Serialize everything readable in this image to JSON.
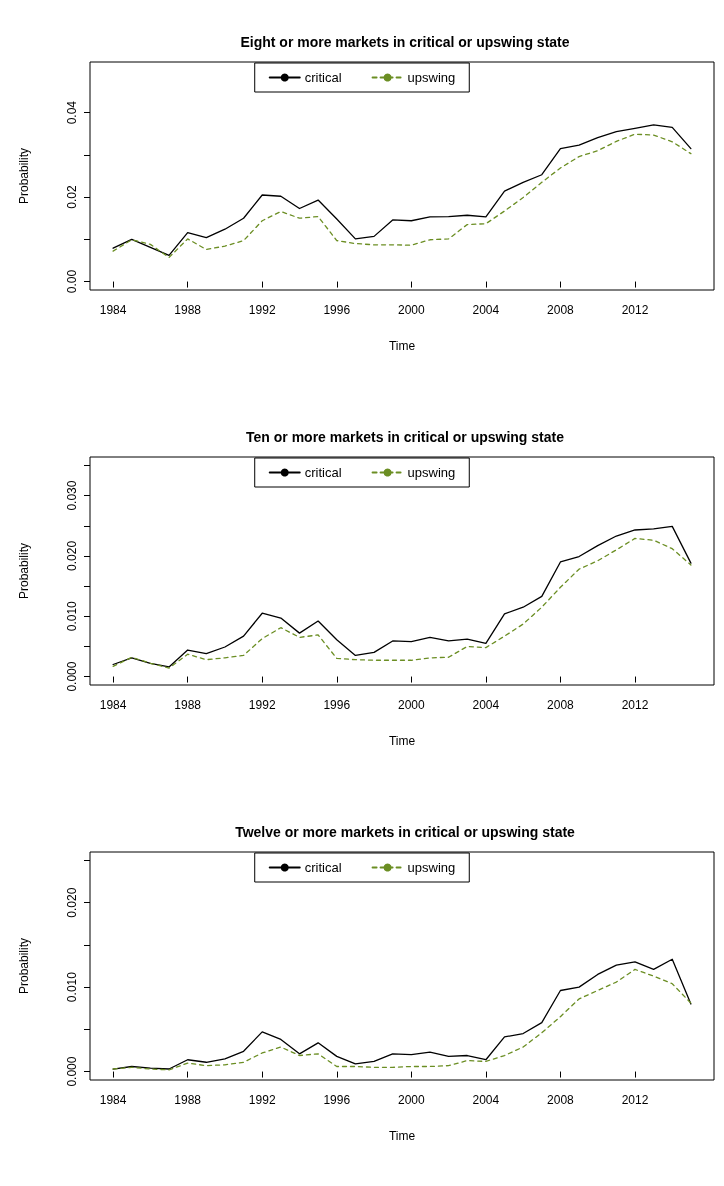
{
  "chart_data": [
    {
      "type": "line",
      "title": "Eight or more markets in critical or upswing state",
      "xlabel": "Time",
      "ylabel": "Probability",
      "x": [
        1984,
        1985,
        1986,
        1987,
        1988,
        1989,
        1990,
        1991,
        1992,
        1993,
        1994,
        1995,
        1996,
        1997,
        1998,
        1999,
        2000,
        2001,
        2002,
        2003,
        2004,
        2005,
        2006,
        2007,
        2008,
        2009,
        2010,
        2011,
        2012,
        2013,
        2014,
        2015
      ],
      "series": [
        {
          "name": "critical",
          "color": "#000000",
          "line_style": "solid",
          "values": [
            0.0079,
            0.01,
            0.0081,
            0.0062,
            0.0116,
            0.0104,
            0.0124,
            0.015,
            0.0205,
            0.0202,
            0.0173,
            0.0193,
            0.0148,
            0.0101,
            0.0107,
            0.0146,
            0.0144,
            0.0153,
            0.0154,
            0.0157,
            0.0153,
            0.0214,
            0.0235,
            0.0253,
            0.0315,
            0.0323,
            0.0341,
            0.0355,
            0.0363,
            0.0371,
            0.0365,
            0.0315
          ]
        },
        {
          "name": "upswing",
          "color": "#6b8e23",
          "line_style": "dashed",
          "values": [
            0.0072,
            0.0099,
            0.0088,
            0.0057,
            0.0101,
            0.0076,
            0.0084,
            0.0097,
            0.0144,
            0.0166,
            0.015,
            0.0154,
            0.0097,
            0.009,
            0.0087,
            0.0087,
            0.0086,
            0.0099,
            0.0101,
            0.0135,
            0.0137,
            0.0167,
            0.0199,
            0.0235,
            0.0269,
            0.0296,
            0.031,
            0.0332,
            0.0349,
            0.0347,
            0.0331,
            0.0303
          ]
        }
      ],
      "xlim": [
        1982.76,
        2016.24
      ],
      "xticks": [
        1984,
        1988,
        1992,
        1996,
        2000,
        2004,
        2008,
        2012
      ],
      "ylim": [
        -0.002,
        0.052
      ],
      "yticks": [
        {
          "value": 0,
          "label": "0.00"
        },
        {
          "value": 0.01,
          "label": null
        },
        {
          "value": 0.02,
          "label": "0.02"
        },
        {
          "value": 0.03,
          "label": null
        },
        {
          "value": 0.04,
          "label": "0.04"
        }
      ],
      "legend": "top",
      "marker": "none",
      "grid": false
    },
    {
      "type": "line",
      "title": "Ten or more markets in critical or upswing state",
      "xlabel": "Time",
      "ylabel": "Probability",
      "x": [
        1984,
        1985,
        1986,
        1987,
        1988,
        1989,
        1990,
        1991,
        1992,
        1993,
        1994,
        1995,
        1996,
        1997,
        1998,
        1999,
        2000,
        2001,
        2002,
        2003,
        2004,
        2005,
        2006,
        2007,
        2008,
        2009,
        2010,
        2011,
        2012,
        2013,
        2014,
        2015
      ],
      "series": [
        {
          "name": "critical",
          "color": "#000000",
          "line_style": "solid",
          "values": [
            0.002,
            0.0031,
            0.0022,
            0.0016,
            0.0044,
            0.0038,
            0.0049,
            0.0067,
            0.0105,
            0.0097,
            0.0072,
            0.0092,
            0.0061,
            0.0035,
            0.004,
            0.0059,
            0.0058,
            0.0065,
            0.0059,
            0.0062,
            0.0055,
            0.0104,
            0.0115,
            0.0133,
            0.019,
            0.0199,
            0.0217,
            0.0233,
            0.0243,
            0.0245,
            0.0249,
            0.0188
          ]
        },
        {
          "name": "upswing",
          "color": "#6b8e23",
          "line_style": "dashed",
          "values": [
            0.0017,
            0.0032,
            0.0022,
            0.0014,
            0.0037,
            0.0028,
            0.0031,
            0.0035,
            0.0063,
            0.0081,
            0.0065,
            0.0069,
            0.003,
            0.0028,
            0.0027,
            0.0027,
            0.0027,
            0.0031,
            0.0032,
            0.005,
            0.0048,
            0.0067,
            0.0087,
            0.0115,
            0.0148,
            0.0178,
            0.0192,
            0.021,
            0.0229,
            0.0226,
            0.0212,
            0.0185
          ]
        }
      ],
      "xlim": [
        1982.76,
        2016.24
      ],
      "xticks": [
        1984,
        1988,
        1992,
        1996,
        2000,
        2004,
        2008,
        2012
      ],
      "ylim": [
        -0.0014,
        0.0364
      ],
      "yticks": [
        {
          "value": 0,
          "label": "0.000"
        },
        {
          "value": 0.005,
          "label": null
        },
        {
          "value": 0.01,
          "label": "0.010"
        },
        {
          "value": 0.015,
          "label": null
        },
        {
          "value": 0.02,
          "label": "0.020"
        },
        {
          "value": 0.025,
          "label": null
        },
        {
          "value": 0.03,
          "label": "0.030"
        },
        {
          "value": 0.035,
          "label": null
        }
      ],
      "legend": "top",
      "marker": "none",
      "grid": false
    },
    {
      "type": "line",
      "title": "Twelve or more markets in critical or upswing state",
      "xlabel": "Time",
      "ylabel": "Probability",
      "x": [
        1984,
        1985,
        1986,
        1987,
        1988,
        1989,
        1990,
        1991,
        1992,
        1993,
        1994,
        1995,
        1996,
        1997,
        1998,
        1999,
        2000,
        2001,
        2002,
        2003,
        2004,
        2005,
        2006,
        2007,
        2008,
        2009,
        2010,
        2011,
        2012,
        2013,
        2014,
        2015
      ],
      "series": [
        {
          "name": "critical",
          "color": "#000000",
          "line_style": "solid",
          "values": [
            0.0003,
            0.0006,
            0.0004,
            0.0003,
            0.0014,
            0.0011,
            0.0015,
            0.0024,
            0.0047,
            0.0038,
            0.0021,
            0.0034,
            0.0018,
            0.0009,
            0.0012,
            0.0021,
            0.002,
            0.0023,
            0.0018,
            0.0019,
            0.0014,
            0.0041,
            0.0045,
            0.0058,
            0.0096,
            0.01,
            0.0115,
            0.0126,
            0.013,
            0.0121,
            0.0133,
            0.008
          ]
        },
        {
          "name": "upswing",
          "color": "#6b8e23",
          "line_style": "dashed",
          "values": [
            0.0003,
            0.0005,
            0.0003,
            0.0002,
            0.001,
            0.0007,
            0.0008,
            0.0011,
            0.0022,
            0.0029,
            0.0019,
            0.0021,
            0.0006,
            0.0006,
            0.0005,
            0.0005,
            0.0006,
            0.0006,
            0.0007,
            0.0013,
            0.0012,
            0.0019,
            0.0029,
            0.0046,
            0.0065,
            0.0086,
            0.0096,
            0.0106,
            0.0121,
            0.0113,
            0.0104,
            0.0081
          ]
        }
      ],
      "xlim": [
        1982.76,
        2016.24
      ],
      "xticks": [
        1984,
        1988,
        1992,
        1996,
        2000,
        2004,
        2008,
        2012
      ],
      "ylim": [
        -0.001,
        0.026
      ],
      "yticks": [
        {
          "value": 0,
          "label": "0.000"
        },
        {
          "value": 0.005,
          "label": null
        },
        {
          "value": 0.01,
          "label": "0.010"
        },
        {
          "value": 0.015,
          "label": null
        },
        {
          "value": 0.02,
          "label": "0.020"
        },
        {
          "value": 0.025,
          "label": null
        }
      ],
      "legend": "top",
      "marker": "none",
      "grid": false
    }
  ]
}
